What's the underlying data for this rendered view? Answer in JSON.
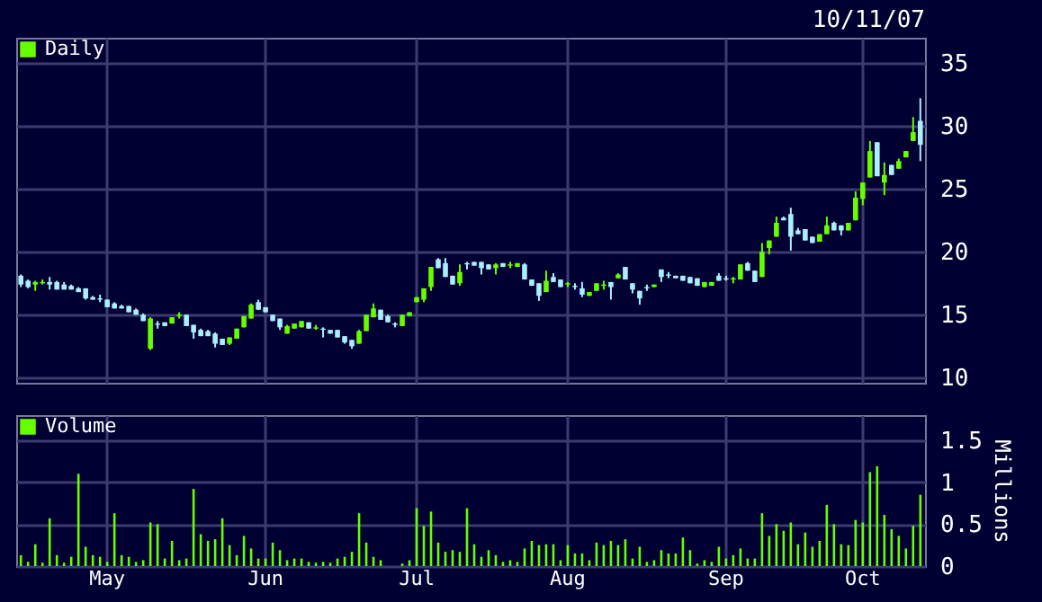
{
  "chart_data": [
    {
      "type": "candlestick",
      "annotations": [
        "10/11/07"
      ],
      "legend": "top left",
      "grid": true,
      "tick_labels": "y",
      "ylim": [
        9.6,
        37
      ],
      "yticks": [
        10,
        15,
        20,
        25,
        30,
        35
      ],
      "categories": [
        null,
        null,
        null,
        null,
        null,
        null,
        null,
        null,
        null,
        null,
        null,
        null,
        null,
        null,
        null,
        null,
        null,
        null,
        null,
        null,
        null,
        null,
        null,
        null,
        null,
        null,
        null,
        null,
        null,
        null,
        null,
        null,
        null,
        null,
        null,
        null,
        null,
        null,
        null,
        null,
        null,
        null,
        null,
        null,
        null,
        null,
        null,
        null,
        null,
        null,
        null,
        null,
        null,
        null,
        null,
        null,
        null,
        null,
        null,
        null,
        null,
        null,
        null,
        null,
        null,
        null,
        null,
        null,
        null,
        null,
        null,
        null,
        null,
        null,
        null,
        null,
        null,
        null,
        null,
        null,
        null,
        null,
        null,
        null,
        null,
        null,
        null,
        null,
        null,
        null,
        null,
        null,
        null,
        null,
        null,
        null,
        null,
        null,
        null,
        null,
        null,
        null,
        null,
        null,
        null,
        null,
        null,
        null,
        null,
        null,
        null,
        null,
        null,
        null,
        null,
        null,
        null,
        null,
        null,
        null,
        null,
        null,
        null,
        null,
        null,
        null
      ],
      "series": [
        {
          "name": "Daily",
          "color": "#66ff00",
          "ohlc": [
            [
              18.1,
              18.2,
              17.2,
              17.4
            ],
            [
              17.7,
              17.8,
              17.1,
              17.2
            ],
            [
              17.4,
              17.7,
              16.9,
              17.6
            ],
            [
              17.5,
              17.8,
              17.4,
              17.6
            ],
            [
              17.6,
              18.0,
              17.0,
              17.4
            ],
            [
              17.6,
              17.7,
              17.0,
              17.0
            ],
            [
              17.4,
              17.6,
              17.0,
              17.0
            ],
            [
              17.3,
              17.4,
              17.0,
              17.0
            ],
            [
              17.1,
              17.2,
              16.8,
              16.8
            ],
            [
              17.1,
              17.1,
              16.2,
              16.3
            ],
            [
              16.4,
              16.5,
              16.2,
              16.2
            ],
            [
              16.3,
              16.6,
              16.0,
              16.2
            ],
            [
              16.2,
              16.2,
              15.6,
              15.6
            ],
            [
              15.9,
              16.0,
              15.5,
              15.5
            ],
            [
              15.7,
              15.8,
              15.5,
              15.5
            ],
            [
              15.7,
              15.7,
              15.2,
              15.2
            ],
            [
              15.4,
              15.5,
              15.0,
              15.0
            ],
            [
              15.0,
              15.1,
              14.5,
              14.5
            ],
            [
              12.3,
              14.8,
              12.2,
              14.7
            ],
            [
              14.3,
              14.5,
              13.9,
              14.2
            ],
            [
              14.4,
              14.4,
              14.1,
              14.1
            ],
            [
              14.3,
              14.8,
              14.3,
              14.8
            ],
            [
              14.9,
              15.2,
              14.7,
              15.0
            ],
            [
              15.0,
              15.0,
              14.1,
              14.1
            ],
            [
              14.2,
              14.2,
              13.1,
              13.6
            ],
            [
              13.8,
              13.9,
              13.3,
              13.3
            ],
            [
              13.7,
              13.8,
              13.3,
              13.3
            ],
            [
              13.5,
              13.6,
              12.4,
              12.7
            ],
            [
              13.1,
              13.1,
              12.6,
              12.6
            ],
            [
              12.7,
              13.2,
              12.6,
              13.2
            ],
            [
              13.1,
              13.9,
              13.1,
              13.9
            ],
            [
              14.0,
              14.9,
              14.0,
              14.9
            ],
            [
              14.7,
              15.9,
              14.7,
              15.8
            ],
            [
              16.0,
              16.2,
              15.4,
              15.4
            ],
            [
              15.6,
              15.6,
              15.2,
              15.2
            ],
            [
              15.0,
              15.0,
              14.5,
              14.5
            ],
            [
              14.7,
              14.7,
              13.8,
              14.0
            ],
            [
              13.5,
              14.2,
              13.5,
              14.1
            ],
            [
              13.9,
              14.3,
              13.9,
              14.3
            ],
            [
              14.0,
              14.5,
              14.0,
              14.5
            ],
            [
              14.4,
              14.4,
              13.9,
              13.9
            ],
            [
              13.9,
              14.2,
              13.8,
              14.0
            ],
            [
              13.9,
              14.0,
              13.2,
              13.8
            ],
            [
              13.8,
              13.8,
              13.5,
              13.5
            ],
            [
              13.8,
              13.8,
              13.2,
              13.2
            ],
            [
              13.3,
              13.3,
              12.7,
              12.8
            ],
            [
              13.0,
              13.0,
              12.3,
              12.5
            ],
            [
              12.7,
              13.8,
              12.7,
              13.7
            ],
            [
              13.7,
              15.0,
              13.7,
              15.0
            ],
            [
              14.8,
              15.9,
              14.8,
              15.5
            ],
            [
              15.4,
              15.4,
              14.6,
              14.6
            ],
            [
              14.9,
              15.0,
              14.4,
              14.4
            ],
            [
              14.3,
              14.4,
              14.0,
              14.2
            ],
            [
              14.1,
              15.0,
              14.1,
              15.0
            ],
            [
              14.9,
              15.2,
              14.9,
              15.2
            ],
            [
              16.0,
              16.4,
              16.0,
              16.4
            ],
            [
              16.2,
              17.1,
              16.0,
              17.1
            ],
            [
              17.2,
              18.8,
              16.9,
              18.8
            ],
            [
              19.4,
              19.5,
              18.7,
              18.7
            ],
            [
              19.1,
              19.5,
              18.0,
              18.0
            ],
            [
              18.1,
              18.1,
              17.4,
              17.4
            ],
            [
              17.5,
              19.0,
              17.3,
              18.4
            ],
            [
              19.1,
              19.2,
              18.6,
              19.0
            ],
            [
              19.2,
              19.2,
              18.9,
              18.9
            ],
            [
              19.2,
              19.2,
              18.2,
              18.7
            ],
            [
              19.0,
              19.0,
              18.6,
              18.6
            ],
            [
              18.7,
              19.1,
              18.2,
              19.0
            ],
            [
              19.1,
              19.1,
              18.8,
              18.8
            ],
            [
              18.9,
              19.2,
              18.7,
              19.0
            ],
            [
              18.8,
              19.1,
              18.8,
              19.1
            ],
            [
              19.0,
              19.1,
              17.8,
              17.8
            ],
            [
              17.8,
              17.8,
              17.3,
              17.3
            ],
            [
              17.5,
              17.5,
              16.1,
              16.5
            ],
            [
              16.8,
              18.5,
              16.8,
              17.7
            ],
            [
              18.0,
              18.3,
              17.6,
              17.6
            ],
            [
              17.8,
              17.8,
              17.2,
              17.2
            ],
            [
              17.4,
              17.6,
              17.2,
              17.5
            ],
            [
              17.3,
              17.5,
              17.0,
              17.2
            ],
            [
              17.1,
              17.6,
              16.4,
              16.6
            ],
            [
              16.5,
              16.8,
              16.5,
              16.8
            ],
            [
              16.9,
              17.5,
              16.9,
              17.5
            ],
            [
              17.3,
              17.7,
              17.0,
              17.4
            ],
            [
              17.6,
              17.6,
              16.2,
              17.2
            ],
            [
              17.9,
              18.3,
              17.9,
              18.2
            ],
            [
              18.8,
              18.8,
              17.8,
              17.8
            ],
            [
              17.5,
              17.5,
              16.7,
              17.0
            ],
            [
              16.9,
              16.9,
              15.8,
              16.3
            ],
            [
              17.2,
              17.4,
              16.9,
              17.1
            ],
            [
              17.2,
              17.4,
              17.2,
              17.4
            ],
            [
              18.6,
              18.6,
              17.6,
              18.0
            ],
            [
              18.2,
              18.4,
              17.9,
              18.1
            ],
            [
              18.1,
              18.1,
              17.9,
              17.9
            ],
            [
              18.1,
              18.1,
              17.7,
              17.7
            ],
            [
              18.0,
              18.0,
              17.5,
              17.5
            ],
            [
              17.9,
              17.9,
              17.3,
              17.3
            ],
            [
              17.2,
              17.6,
              17.2,
              17.6
            ],
            [
              17.3,
              17.6,
              17.3,
              17.6
            ],
            [
              18.1,
              18.3,
              17.7,
              17.7
            ],
            [
              17.9,
              18.1,
              17.7,
              17.8
            ],
            [
              17.8,
              18.0,
              17.5,
              17.9
            ],
            [
              17.8,
              19.0,
              17.8,
              19.0
            ],
            [
              19.1,
              19.2,
              18.5,
              18.5
            ],
            [
              18.5,
              18.5,
              17.6,
              17.6
            ],
            [
              18.0,
              20.7,
              18.0,
              20.0
            ],
            [
              20.3,
              20.9,
              19.8,
              20.9
            ],
            [
              21.2,
              22.8,
              21.2,
              22.3
            ],
            [
              22.7,
              22.8,
              22.5,
              22.5
            ],
            [
              23.0,
              23.5,
              20.1,
              21.2
            ],
            [
              21.7,
              21.9,
              21.4,
              21.4
            ],
            [
              21.8,
              21.8,
              20.9,
              20.9
            ],
            [
              21.2,
              21.2,
              20.7,
              20.7
            ],
            [
              20.8,
              21.4,
              20.8,
              21.4
            ],
            [
              21.4,
              22.8,
              21.4,
              22.1
            ],
            [
              22.3,
              22.4,
              21.7,
              21.7
            ],
            [
              22.1,
              22.1,
              21.3,
              21.7
            ],
            [
              21.7,
              22.3,
              21.7,
              22.3
            ],
            [
              22.5,
              24.8,
              22.5,
              24.3
            ],
            [
              24.2,
              25.5,
              23.7,
              25.5
            ],
            [
              25.9,
              28.8,
              25.9,
              28.0
            ],
            [
              28.7,
              28.7,
              26.0,
              26.0
            ],
            [
              25.5,
              27.1,
              24.5,
              26.1
            ],
            [
              26.9,
              26.9,
              26.1,
              26.1
            ],
            [
              26.6,
              27.4,
              26.6,
              27.2
            ],
            [
              27.5,
              28.0,
              27.5,
              28.0
            ],
            [
              28.8,
              30.7,
              28.8,
              29.5
            ],
            [
              30.4,
              32.2,
              27.2,
              28.5
            ]
          ],
          "colors": [
            "#aaeeff",
            "#aaeeff",
            "#66ff00",
            "#66ff00",
            "#aaeeff",
            "#aaeeff",
            "#aaeeff",
            "#aaeeff",
            "#aaeeff",
            "#aaeeff",
            "#aaeeff",
            "#aaeeff",
            "#aaeeff",
            "#aaeeff",
            "#aaeeff",
            "#aaeeff",
            "#aaeeff",
            "#aaeeff",
            "#66ff00",
            "#aaeeff",
            "#aaeeff",
            "#66ff00",
            "#66ff00",
            "#aaeeff",
            "#aaeeff",
            "#aaeeff",
            "#aaeeff",
            "#aaeeff",
            "#aaeeff",
            "#66ff00",
            "#66ff00",
            "#66ff00",
            "#66ff00",
            "#aaeeff",
            "#aaeeff",
            "#aaeeff",
            "#aaeeff",
            "#66ff00",
            "#66ff00",
            "#66ff00",
            "#aaeeff",
            "#66ff00",
            "#aaeeff",
            "#aaeeff",
            "#aaeeff",
            "#aaeeff",
            "#aaeeff",
            "#66ff00",
            "#66ff00",
            "#66ff00",
            "#aaeeff",
            "#aaeeff",
            "#aaeeff",
            "#66ff00",
            "#66ff00",
            "#66ff00",
            "#66ff00",
            "#66ff00",
            "#aaeeff",
            "#aaeeff",
            "#aaeeff",
            "#66ff00",
            "#aaeeff",
            "#aaeeff",
            "#aaeeff",
            "#aaeeff",
            "#66ff00",
            "#aaeeff",
            "#66ff00",
            "#66ff00",
            "#aaeeff",
            "#aaeeff",
            "#aaeeff",
            "#66ff00",
            "#aaeeff",
            "#aaeeff",
            "#66ff00",
            "#aaeeff",
            "#aaeeff",
            "#66ff00",
            "#66ff00",
            "#66ff00",
            "#aaeeff",
            "#66ff00",
            "#aaeeff",
            "#aaeeff",
            "#aaeeff",
            "#aaeeff",
            "#66ff00",
            "#aaeeff",
            "#aaeeff",
            "#aaeeff",
            "#aaeeff",
            "#aaeeff",
            "#aaeeff",
            "#66ff00",
            "#66ff00",
            "#aaeeff",
            "#aaeeff",
            "#66ff00",
            "#66ff00",
            "#aaeeff",
            "#aaeeff",
            "#66ff00",
            "#66ff00",
            "#66ff00",
            "#aaeeff",
            "#aaeeff",
            "#aaeeff",
            "#aaeeff",
            "#aaeeff",
            "#66ff00",
            "#66ff00",
            "#aaeeff",
            "#aaeeff",
            "#66ff00",
            "#66ff00",
            "#66ff00",
            "#66ff00",
            "#aaeeff",
            "#66ff00",
            "#aaeeff",
            "#66ff00",
            "#66ff00",
            "#66ff00",
            "#aaeeff"
          ]
        }
      ]
    },
    {
      "type": "bar",
      "legend": "top left",
      "grid": true,
      "ylabel": "Millions",
      "ylim": [
        0,
        1.8
      ],
      "yticks": [
        0,
        0.5,
        1,
        1.5
      ],
      "categories": [
        null,
        null,
        null,
        null,
        null,
        null,
        null,
        null,
        null,
        null,
        null,
        null,
        "May",
        null,
        null,
        null,
        null,
        null,
        null,
        null,
        null,
        null,
        null,
        null,
        null,
        null,
        null,
        null,
        null,
        null,
        null,
        null,
        null,
        null,
        "Jun",
        null,
        null,
        null,
        null,
        null,
        null,
        null,
        null,
        null,
        null,
        null,
        null,
        null,
        null,
        null,
        null,
        null,
        null,
        null,
        null,
        "Jul",
        null,
        null,
        null,
        null,
        null,
        null,
        null,
        null,
        null,
        null,
        null,
        null,
        null,
        null,
        null,
        null,
        null,
        null,
        null,
        null,
        "Aug",
        null,
        null,
        null,
        null,
        null,
        null,
        null,
        null,
        null,
        null,
        null,
        null,
        null,
        null,
        null,
        null,
        null,
        null,
        null,
        null,
        null,
        "Sep",
        null,
        null,
        null,
        null,
        null,
        null,
        null,
        null,
        null,
        null,
        null,
        null,
        null,
        null,
        null,
        null,
        null,
        null,
        "Oct",
        null,
        null,
        null,
        null,
        null,
        null,
        null,
        null
      ],
      "series": [
        {
          "name": "Volume",
          "color": "#66ff00",
          "values": [
            0.13,
            0.05,
            0.26,
            0.04,
            0.57,
            0.13,
            0.04,
            0.11,
            1.1,
            0.23,
            0.13,
            0.11,
            0.05,
            0.63,
            0.13,
            0.11,
            0.05,
            0.07,
            0.52,
            0.5,
            0.09,
            0.3,
            0.07,
            0.09,
            0.92,
            0.38,
            0.3,
            0.32,
            0.57,
            0.25,
            0.13,
            0.36,
            0.21,
            0.09,
            0.09,
            0.28,
            0.19,
            0.07,
            0.09,
            0.09,
            0.05,
            0.04,
            0.05,
            0.04,
            0.09,
            0.11,
            0.17,
            0.63,
            0.28,
            0.11,
            0.07,
            null,
            null,
            0.03,
            0.07,
            0.69,
            0.48,
            0.65,
            0.28,
            0.17,
            0.19,
            0.17,
            0.69,
            0.26,
            0.11,
            0.19,
            0.13,
            0.05,
            0.07,
            0.05,
            0.21,
            0.3,
            0.25,
            0.26,
            0.26,
            0.07,
            0.25,
            0.15,
            0.15,
            0.07,
            0.28,
            0.25,
            0.3,
            0.25,
            0.32,
            0.09,
            0.23,
            0.05,
            0.07,
            0.19,
            0.15,
            0.15,
            0.34,
            0.19,
            0.03,
            0.07,
            0.05,
            0.23,
            0.09,
            0.13,
            0.21,
            0.09,
            0.09,
            0.63,
            0.36,
            0.5,
            0.42,
            0.52,
            0.26,
            0.4,
            0.23,
            0.3,
            0.73,
            0.5,
            0.26,
            0.25,
            0.55,
            0.52,
            1.12,
            1.19,
            0.61,
            0.44,
            0.36,
            0.21,
            0.48,
            0.85
          ]
        }
      ]
    }
  ]
}
